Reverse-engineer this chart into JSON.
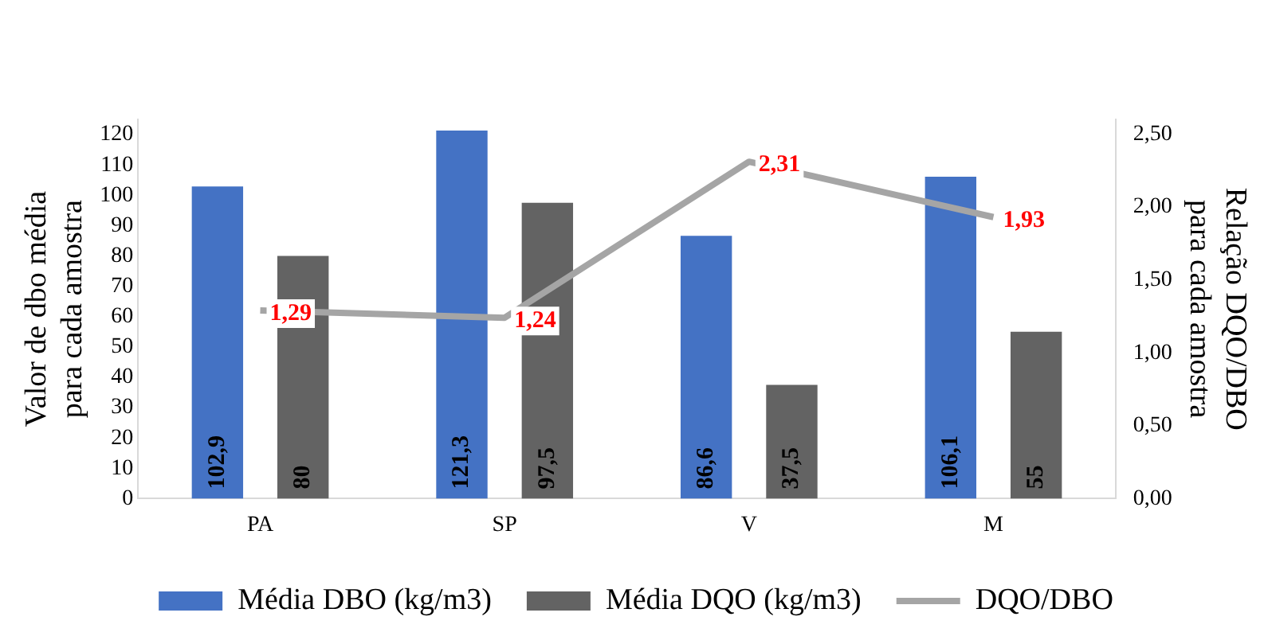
{
  "chart_data": {
    "type": "bar",
    "categories": [
      "PA",
      "SP",
      "V",
      "M"
    ],
    "ylabel": "Valor de dbo média para cada amostra",
    "y2label": "Relação DQO/DBO para cada amostra",
    "ylim": [
      0,
      125
    ],
    "yticks": [
      0,
      10,
      20,
      30,
      40,
      50,
      60,
      70,
      80,
      90,
      100,
      110,
      120
    ],
    "y2lim": [
      0,
      2.6
    ],
    "y2ticks": [
      {
        "value": 0,
        "label": "0,00"
      },
      {
        "value": 0.5,
        "label": "0,50"
      },
      {
        "value": 1,
        "label": "1,00"
      },
      {
        "value": 1.5,
        "label": "1,50"
      },
      {
        "value": 2,
        "label": "2,00"
      },
      {
        "value": 2.5,
        "label": "2,50"
      }
    ],
    "series": [
      {
        "name": "Média DBO (kg/m3)",
        "color": "#4472c4",
        "values": [
          102.9,
          121.3,
          86.6,
          106.1
        ],
        "value_labels": [
          "102,9",
          "121,3",
          "86,6",
          "106,1"
        ]
      },
      {
        "name": "Média DQO (kg/m3)",
        "color": "#636363",
        "values": [
          80,
          97.5,
          37.5,
          55
        ],
        "value_labels": [
          "80",
          "97,5",
          "37,5",
          "55"
        ]
      },
      {
        "name": "DQO/DBO",
        "type": "line",
        "axis": "y2",
        "color": "#a5a5a5",
        "values": [
          1.29,
          1.24,
          2.31,
          1.93
        ],
        "value_labels": [
          "1,29",
          "1,24",
          "2,31",
          "1,93"
        ]
      }
    ],
    "grid": false,
    "legend": "bottom",
    "marker": "none",
    "line_style": "solid"
  }
}
